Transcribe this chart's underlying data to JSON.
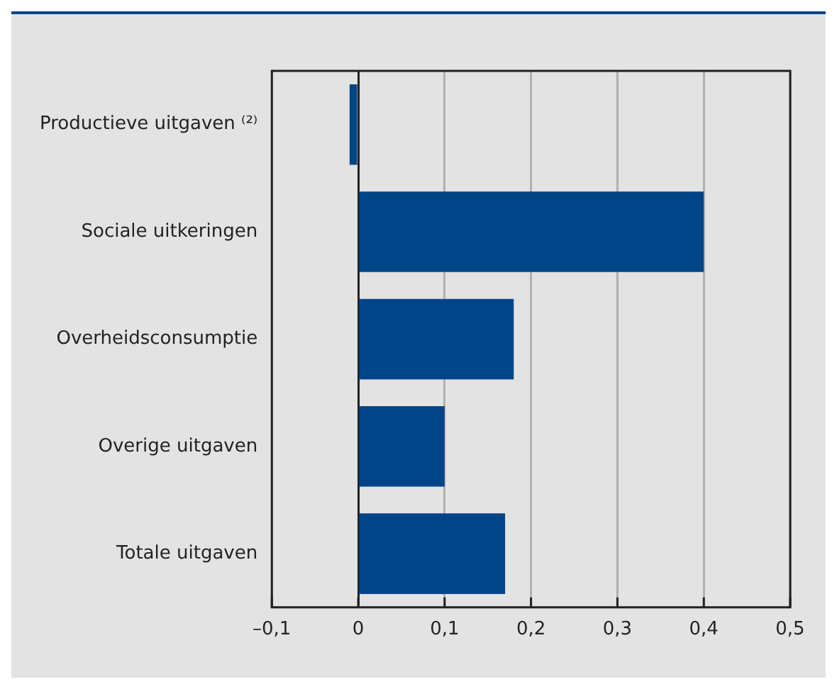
{
  "chart_data": {
    "type": "bar",
    "orientation": "horizontal",
    "categories": [
      "Productieve uitgaven ⁽²⁾",
      "Sociale uitkeringen",
      "Overheidsconsumptie",
      "Overige uitgaven",
      "Totale uitgaven"
    ],
    "values": [
      -0.01,
      0.4,
      0.18,
      0.1,
      0.17
    ],
    "color": "#004587",
    "xlim": [
      -0.1,
      0.5
    ],
    "xticks": [
      {
        "value": -0.1,
        "label": "–0,1"
      },
      0,
      {
        "value": 0.1,
        "label": "0,1"
      },
      {
        "value": 0.2,
        "label": "0,2"
      },
      {
        "value": 0.3,
        "label": "0,3"
      },
      {
        "value": 0.4,
        "label": "0,4"
      },
      {
        "value": 0.5,
        "label": "0,5"
      }
    ],
    "grid": "x",
    "legend": false
  }
}
